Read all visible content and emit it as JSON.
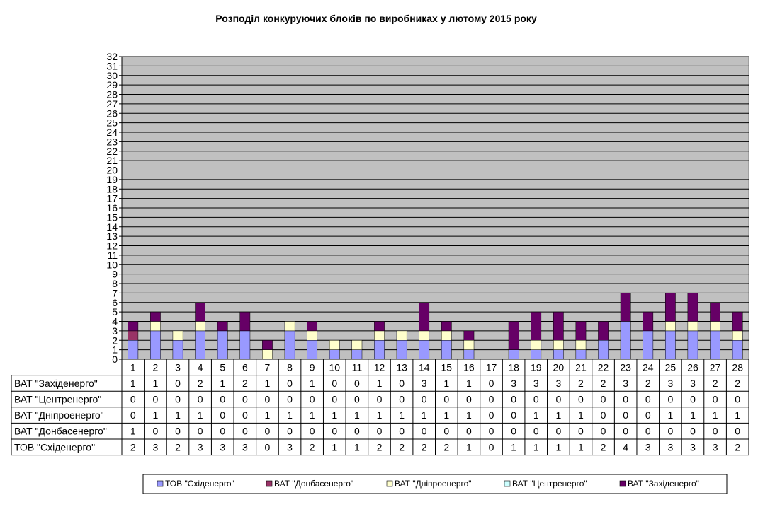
{
  "chart_data": {
    "type": "bar",
    "stacked": true,
    "title": "Розподіл конкуруючих блоків по виробниках у лютому 2015 року",
    "categories": [
      "1",
      "2",
      "3",
      "4",
      "5",
      "6",
      "7",
      "8",
      "9",
      "10",
      "11",
      "12",
      "13",
      "14",
      "15",
      "16",
      "17",
      "18",
      "19",
      "20",
      "21",
      "22",
      "23",
      "24",
      "25",
      "26",
      "27",
      "28"
    ],
    "ylim": [
      0,
      32
    ],
    "yticks": [
      "0",
      "1",
      "2",
      "3",
      "4",
      "5",
      "6",
      "7",
      "8",
      "9",
      "10",
      "11",
      "12",
      "13",
      "14",
      "15",
      "16",
      "17",
      "18",
      "19",
      "20",
      "21",
      "22",
      "23",
      "24",
      "25",
      "26",
      "27",
      "28",
      "29",
      "30",
      "31",
      "32"
    ],
    "grid": true,
    "legend_position": "bottom",
    "series": [
      {
        "name": "ТОВ \"Східенерго\"",
        "color": "#9999ff",
        "values": [
          2,
          3,
          2,
          3,
          3,
          3,
          0,
          3,
          2,
          1,
          1,
          2,
          2,
          2,
          2,
          1,
          0,
          1,
          1,
          1,
          1,
          2,
          4,
          3,
          3,
          3,
          3,
          2
        ]
      },
      {
        "name": "ВАТ \"Донбасенерго\"",
        "color": "#993366",
        "values": [
          1,
          0,
          0,
          0,
          0,
          0,
          0,
          0,
          0,
          0,
          0,
          0,
          0,
          0,
          0,
          0,
          0,
          0,
          0,
          0,
          0,
          0,
          0,
          0,
          0,
          0,
          0,
          0
        ]
      },
      {
        "name": "ВАТ \"Дніпроенерго\"",
        "color": "#ffffcc",
        "values": [
          0,
          1,
          1,
          1,
          0,
          0,
          1,
          1,
          1,
          1,
          1,
          1,
          1,
          1,
          1,
          1,
          0,
          0,
          1,
          1,
          1,
          0,
          0,
          0,
          1,
          1,
          1,
          1
        ]
      },
      {
        "name": "ВАТ \"Центренерго\"",
        "color": "#ccffff",
        "values": [
          0,
          0,
          0,
          0,
          0,
          0,
          0,
          0,
          0,
          0,
          0,
          0,
          0,
          0,
          0,
          0,
          0,
          0,
          0,
          0,
          0,
          0,
          0,
          0,
          0,
          0,
          0,
          0
        ]
      },
      {
        "name": "ВАТ \"Західенерго\"",
        "color": "#660066",
        "values": [
          1,
          1,
          0,
          2,
          1,
          2,
          1,
          0,
          1,
          0,
          0,
          1,
          0,
          3,
          1,
          1,
          0,
          3,
          3,
          3,
          2,
          2,
          3,
          2,
          3,
          3,
          2,
          2
        ]
      }
    ],
    "table_row_order": [
      4,
      3,
      2,
      1,
      0
    ],
    "colors": {
      "plot_background": "#c0c0c0",
      "gridline": "#000000"
    }
  }
}
